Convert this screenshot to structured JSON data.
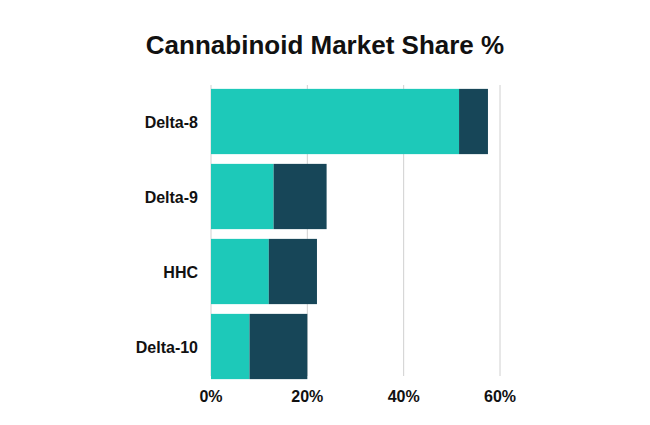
{
  "chart_data": {
    "type": "bar",
    "title": "Cannabinoid Market Share %",
    "orientation": "horizontal",
    "stacked": true,
    "grid": true,
    "categories": [
      "Delta-8",
      "Delta-9",
      "HHC",
      "Delta-10"
    ],
    "series": [
      {
        "color": "#1dc9b9",
        "values": [
          51.5,
          13,
          12,
          8
        ]
      },
      {
        "color": "#174658",
        "values": [
          6,
          11,
          10,
          12
        ]
      }
    ],
    "xlim": [
      0,
      60
    ],
    "xticks": [
      {
        "value": 0,
        "label": "0%"
      },
      {
        "value": 20,
        "label": "20%"
      },
      {
        "value": 40,
        "label": "40%"
      },
      {
        "value": 60,
        "label": "60%"
      }
    ]
  }
}
